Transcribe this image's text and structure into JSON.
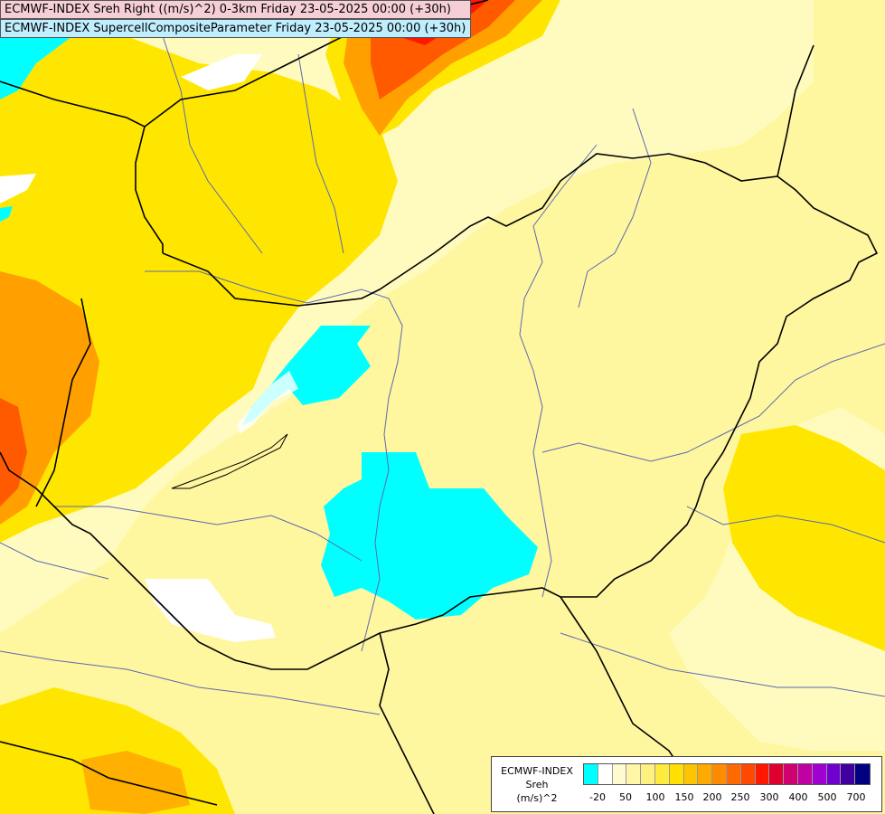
{
  "title": {
    "line1": "ECMWF-INDEX Sreh Right ((m/s)^2) 0-3km Friday 23-05-2025 00:00 (+30h)",
    "line2": "ECMWF-INDEX SupercellCompositeParameter Friday 23-05-2025 00:00 (+30h)"
  },
  "legend": {
    "line1": "ECMWF-INDEX",
    "line2": "Sreh",
    "line3": "(m/s)^2",
    "ticks": [
      "-20",
      "50",
      "100",
      "150",
      "200",
      "250",
      "300",
      "400",
      "500",
      "700"
    ],
    "colors": [
      "#00ffff",
      "#ffffff",
      "#fffbd0",
      "#fff6a8",
      "#fff180",
      "#ffea40",
      "#ffe000",
      "#ffc400",
      "#ffaa00",
      "#ff8c00",
      "#ff6a00",
      "#ff4800",
      "#ff1800",
      "#e00030",
      "#d00070",
      "#c000a0",
      "#a000d0",
      "#7000d0",
      "#4000a0",
      "#000080"
    ]
  },
  "colors": {
    "base": "#fffbbf",
    "light": "#fff6a0",
    "yellow": "#ffe600",
    "orange": "#ffa000",
    "red": "#ff5a00",
    "cyan": "#00ffff",
    "white": "#ffffff",
    "border": "#000000",
    "river": "#5a6ab0"
  }
}
